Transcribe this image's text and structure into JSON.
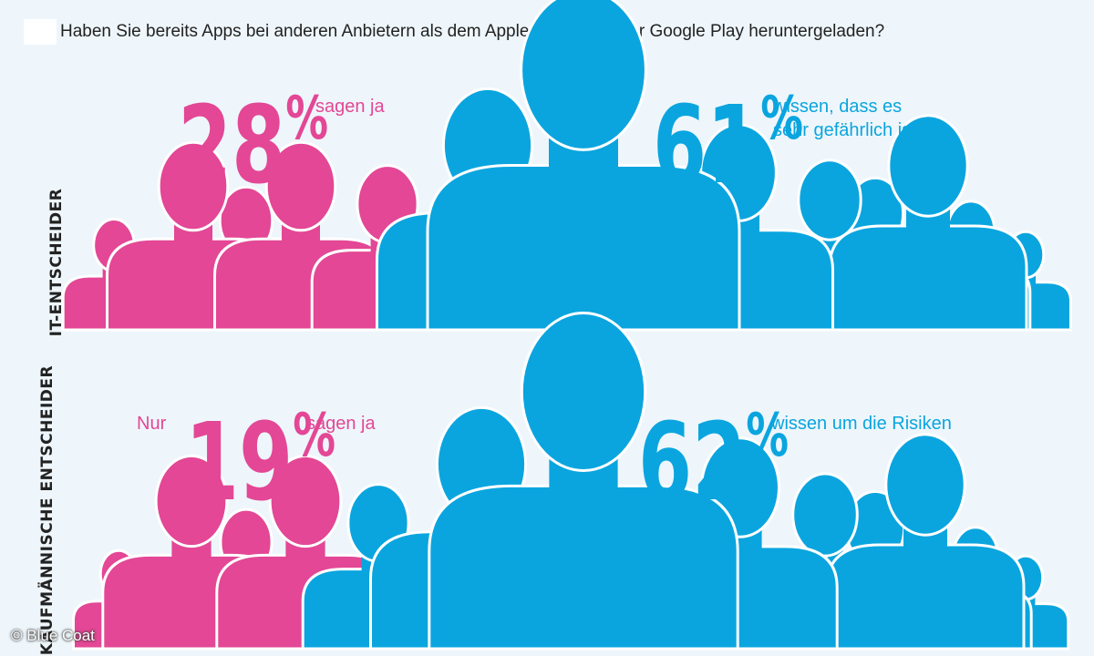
{
  "question": "Haben Sie bereits Apps bei anderen Anbietern als dem Apple AppStore oder Google Play heruntergeladen?",
  "credit": "© Blue Coat",
  "colors": {
    "pink": "#e34795",
    "blue": "#0aa5df",
    "background": "#eef6fb"
  },
  "groups": [
    {
      "label": "IT-ENTSCHEIDER",
      "pink_stat": {
        "prefix": "",
        "number": "28",
        "percent_sign": "%",
        "text": "sagen ja",
        "value": 28
      },
      "blue_stat": {
        "number": "61",
        "percent_sign": "%",
        "text_line1": "wissen, dass es",
        "text_line2": "sehr gefährlich ist",
        "value": 61
      }
    },
    {
      "label": "KAUFMÄNNISCHE ENTSCHEIDER",
      "pink_stat": {
        "prefix": "Nur",
        "number": "19",
        "percent_sign": "%",
        "text": "sagen ja",
        "value": 19
      },
      "blue_stat": {
        "number": "62",
        "percent_sign": "%",
        "text_line1": "wissen um die Risiken",
        "value": 62
      }
    }
  ]
}
